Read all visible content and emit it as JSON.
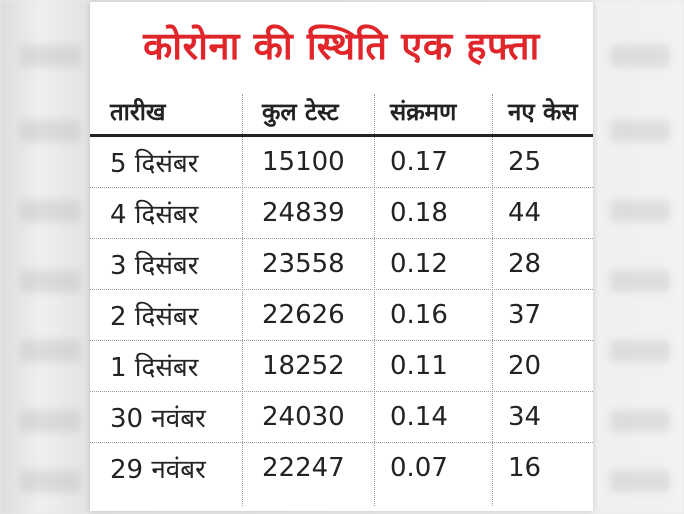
{
  "title": "कोरोना की स्थिति एक हफ्ता",
  "colors": {
    "title": "#e0262b",
    "text": "#232323",
    "card": "#ffffff"
  },
  "table": {
    "headers": [
      "तारीख",
      "कुल टेस्ट",
      "संक्रमण",
      "नए केस"
    ],
    "rows": [
      [
        "5 दिसंबर",
        "15100",
        "0.17",
        "25"
      ],
      [
        "4 दिसंबर",
        "24839",
        "0.18",
        "44"
      ],
      [
        "3 दिसंबर",
        "23558",
        "0.12",
        "28"
      ],
      [
        "2 दिसंबर",
        "22626",
        "0.16",
        "37"
      ],
      [
        "1 दिसंबर",
        "18252",
        "0.11",
        "20"
      ],
      [
        "30 नवंबर",
        "24030",
        "0.14",
        "34"
      ],
      [
        "29 नवंबर",
        "22247",
        "0.07",
        "16"
      ]
    ]
  }
}
